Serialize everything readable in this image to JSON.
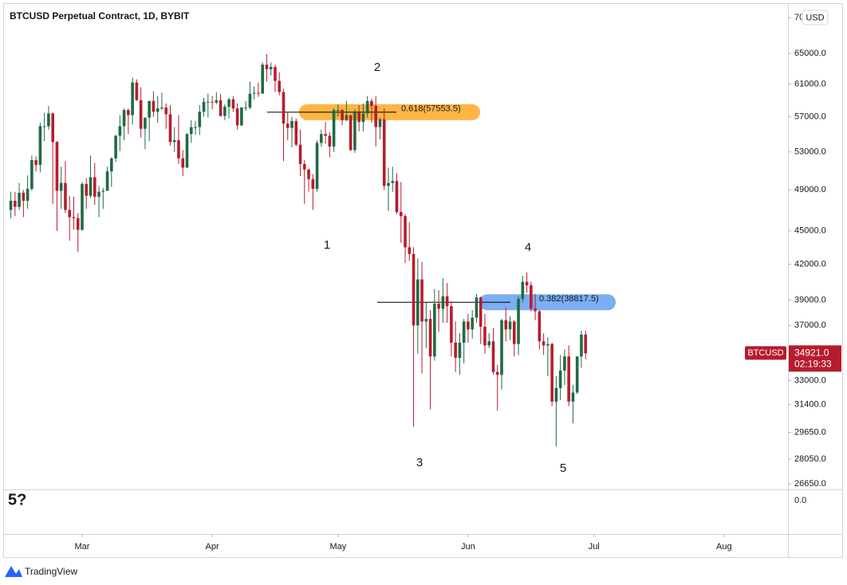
{
  "chart_data": {
    "type": "candlestick",
    "title": "BTCUSD Perpetual Contract, 1D, BYBIT",
    "symbol": "BTCUSD",
    "currency_button": "USD",
    "brand": "TradingView",
    "up_color": "#1e6b45",
    "down_color": "#b71c2c",
    "log_scale": true,
    "grid": false,
    "ylim": [
      26390,
      71650
    ],
    "yticks": [
      {
        "value": 70000,
        "label": "70000.0"
      },
      {
        "value": 65000,
        "label": "65000.0"
      },
      {
        "value": 61000,
        "label": "61000.0"
      },
      {
        "value": 57000,
        "label": "57000.0"
      },
      {
        "value": 53000,
        "label": "53000.0"
      },
      {
        "value": 49000,
        "label": "49000.0"
      },
      {
        "value": 45000,
        "label": "45000.0"
      },
      {
        "value": 42000,
        "label": "42000.0"
      },
      {
        "value": 39000,
        "label": "39000.0"
      },
      {
        "value": 37000,
        "label": "37000.0"
      },
      {
        "value": 33000,
        "label": "33000.0"
      },
      {
        "value": 31400,
        "label": "31400.0"
      },
      {
        "value": 29650,
        "label": "29650.0"
      },
      {
        "value": 28050,
        "label": "28050.0"
      },
      {
        "value": 26650,
        "label": "26650.0"
      }
    ],
    "xticks": [
      {
        "value": 17,
        "label": "Mar"
      },
      {
        "value": 48,
        "label": "Apr"
      },
      {
        "value": 78,
        "label": "May"
      },
      {
        "value": 109,
        "label": "Jun"
      },
      {
        "value": 139,
        "label": "Jul"
      },
      {
        "value": 170,
        "label": "Aug"
      }
    ],
    "last_price": {
      "value": 34921,
      "label": "34921.0"
    },
    "countdown": "02:19:33",
    "fib_levels": [
      {
        "label": "0.618(57553.5)",
        "value": 57553.5,
        "color": "#ffa726"
      },
      {
        "label": "0.382(38817.5)",
        "value": 38817.5,
        "color": "#64a0f0"
      }
    ],
    "waves": [
      "1",
      "2",
      "3",
      "4",
      "5"
    ],
    "lower_pane": {
      "label": "5?",
      "yticks": [
        {
          "value": 0,
          "label": "0.0"
        }
      ]
    },
    "ohlc": [
      [
        47000,
        48800,
        46200,
        47900
      ],
      [
        47900,
        48800,
        46400,
        47300
      ],
      [
        47300,
        49700,
        47000,
        48700
      ],
      [
        48700,
        49000,
        46300,
        47900
      ],
      [
        47900,
        50500,
        47100,
        49100
      ],
      [
        49100,
        52600,
        48900,
        52100
      ],
      [
        52100,
        52500,
        50900,
        51600
      ],
      [
        51600,
        56300,
        50800,
        55900
      ],
      [
        55900,
        57500,
        54200,
        55900
      ],
      [
        55900,
        58300,
        55500,
        57400
      ],
      [
        57400,
        57500,
        47600,
        54100
      ],
      [
        54100,
        54200,
        45000,
        48900
      ],
      [
        48900,
        51400,
        47100,
        49700
      ],
      [
        49700,
        52000,
        46700,
        47000
      ],
      [
        47000,
        48400,
        44100,
        46300
      ],
      [
        46300,
        48300,
        45100,
        46200
      ],
      [
        46200,
        46700,
        43100,
        45100
      ],
      [
        45100,
        49800,
        45000,
        49600
      ],
      [
        49600,
        50200,
        47100,
        48400
      ],
      [
        48400,
        52600,
        48200,
        50300
      ],
      [
        50300,
        51800,
        47500,
        48300
      ],
      [
        48300,
        49400,
        46300,
        48800
      ],
      [
        48800,
        49200,
        47100,
        48900
      ],
      [
        48900,
        51400,
        48900,
        50900
      ],
      [
        50900,
        52400,
        49300,
        52300
      ],
      [
        52300,
        54900,
        51900,
        54800
      ],
      [
        54800,
        57200,
        53100,
        55900
      ],
      [
        55900,
        58000,
        54300,
        57800
      ],
      [
        57800,
        58000,
        55000,
        57200
      ],
      [
        57200,
        61800,
        56100,
        61200
      ],
      [
        61200,
        61600,
        58900,
        59000
      ],
      [
        59000,
        60600,
        54600,
        55600
      ],
      [
        55600,
        56900,
        53300,
        56900
      ],
      [
        56900,
        58900,
        54200,
        58900
      ],
      [
        58900,
        60100,
        57000,
        57600
      ],
      [
        57600,
        59500,
        56300,
        58000
      ],
      [
        58000,
        59900,
        57800,
        58100
      ],
      [
        58100,
        58600,
        55600,
        57300
      ],
      [
        57300,
        58400,
        53700,
        54100
      ],
      [
        54100,
        55800,
        53000,
        54300
      ],
      [
        54300,
        57200,
        51700,
        52300
      ],
      [
        52300,
        53200,
        50400,
        51300
      ],
      [
        51300,
        55100,
        51300,
        55000
      ],
      [
        55000,
        56600,
        54000,
        55800
      ],
      [
        55800,
        56500,
        54900,
        55800
      ],
      [
        55800,
        58400,
        54900,
        57600
      ],
      [
        57600,
        59300,
        57000,
        58800
      ],
      [
        58800,
        59800,
        56900,
        58800
      ],
      [
        58800,
        59500,
        57900,
        58700
      ],
      [
        58700,
        60000,
        58500,
        59000
      ],
      [
        59000,
        59800,
        57000,
        57100
      ],
      [
        57100,
        58500,
        56600,
        58200
      ],
      [
        58200,
        59300,
        56800,
        59100
      ],
      [
        59100,
        59500,
        57600,
        58000
      ],
      [
        58000,
        58600,
        55500,
        56000
      ],
      [
        56000,
        58200,
        55900,
        58100
      ],
      [
        58100,
        58900,
        57700,
        58100
      ],
      [
        58100,
        61300,
        57900,
        59800
      ],
      [
        59800,
        60700,
        59100,
        59900
      ],
      [
        59900,
        61200,
        59400,
        59800
      ],
      [
        59800,
        63800,
        59800,
        63500
      ],
      [
        63500,
        64900,
        61300,
        62900
      ],
      [
        62900,
        63800,
        62100,
        63200
      ],
      [
        63200,
        63500,
        60000,
        61400
      ],
      [
        61400,
        62500,
        59600,
        60000
      ],
      [
        60000,
        60400,
        52000,
        56200
      ],
      [
        56200,
        57600,
        54300,
        55700
      ],
      [
        55700,
        57000,
        53500,
        56500
      ],
      [
        56500,
        56800,
        53600,
        53800
      ],
      [
        53800,
        55500,
        50400,
        51700
      ],
      [
        51700,
        52100,
        47600,
        51100
      ],
      [
        51100,
        51200,
        48800,
        50100
      ],
      [
        50100,
        50600,
        47000,
        49100
      ],
      [
        49100,
        54300,
        48800,
        54000
      ],
      [
        54000,
        55500,
        53600,
        55000
      ],
      [
        55000,
        56400,
        53900,
        54800
      ],
      [
        54800,
        55200,
        52400,
        53600
      ],
      [
        53600,
        58000,
        53000,
        57800
      ],
      [
        57800,
        58500,
        57000,
        57800
      ],
      [
        57800,
        57900,
        56000,
        56600
      ],
      [
        56600,
        58900,
        56500,
        57200
      ],
      [
        57200,
        57200,
        53100,
        53200
      ],
      [
        53200,
        57900,
        52900,
        57500
      ],
      [
        57500,
        58400,
        55300,
        56400
      ],
      [
        56400,
        58600,
        55300,
        57400
      ],
      [
        57400,
        59500,
        56900,
        58900
      ],
      [
        58900,
        59200,
        56300,
        58300
      ],
      [
        58300,
        59500,
        53600,
        55800
      ],
      [
        55800,
        56900,
        54400,
        56700
      ],
      [
        56700,
        58000,
        49000,
        49400
      ],
      [
        49400,
        51300,
        46900,
        49700
      ],
      [
        49700,
        51400,
        48800,
        49900
      ],
      [
        49900,
        50700,
        46600,
        46800
      ],
      [
        46800,
        49800,
        43900,
        46400
      ],
      [
        46400,
        46600,
        42100,
        43500
      ],
      [
        43500,
        45800,
        42300,
        42900
      ],
      [
        42900,
        43500,
        30000,
        37000
      ],
      [
        37000,
        42500,
        34900,
        40700
      ],
      [
        40700,
        42200,
        33500,
        37300
      ],
      [
        37300,
        38800,
        35300,
        37500
      ],
      [
        37500,
        38200,
        31100,
        34700
      ],
      [
        34700,
        39900,
        34400,
        38700
      ],
      [
        38700,
        39800,
        36500,
        38300
      ],
      [
        38300,
        40800,
        37200,
        39300
      ],
      [
        39300,
        40400,
        37200,
        38500
      ],
      [
        38500,
        38900,
        34700,
        35700
      ],
      [
        35700,
        37300,
        33600,
        34600
      ],
      [
        34600,
        36400,
        33400,
        35700
      ],
      [
        35700,
        37500,
        34200,
        37300
      ],
      [
        37300,
        37900,
        35700,
        36700
      ],
      [
        36700,
        38200,
        36000,
        37600
      ],
      [
        37600,
        39500,
        37200,
        39200
      ],
      [
        39200,
        39300,
        35600,
        36900
      ],
      [
        36900,
        37900,
        34900,
        35500
      ],
      [
        35500,
        36400,
        35300,
        35800
      ],
      [
        35800,
        36800,
        33400,
        33600
      ],
      [
        33600,
        34100,
        31000,
        33400
      ],
      [
        33400,
        37500,
        32400,
        37400
      ],
      [
        37400,
        38400,
        35800,
        36700
      ],
      [
        36700,
        37700,
        35900,
        37300
      ],
      [
        37300,
        37400,
        34700,
        35600
      ],
      [
        35600,
        39300,
        34800,
        39100
      ],
      [
        39100,
        41000,
        38800,
        40500
      ],
      [
        40500,
        41300,
        39600,
        40200
      ],
      [
        40200,
        40500,
        38100,
        38300
      ],
      [
        38300,
        39500,
        37400,
        38100
      ],
      [
        38100,
        38200,
        35200,
        35800
      ],
      [
        35800,
        36400,
        34800,
        35500
      ],
      [
        35500,
        36100,
        33300,
        35600
      ],
      [
        35600,
        35700,
        31300,
        31600
      ],
      [
        31600,
        33300,
        28800,
        32500
      ],
      [
        32500,
        34800,
        31700,
        33700
      ],
      [
        33700,
        35200,
        32700,
        34700
      ],
      [
        34700,
        35500,
        31300,
        31600
      ],
      [
        31600,
        32700,
        30200,
        32200
      ],
      [
        32200,
        34700,
        32100,
        34700
      ],
      [
        34700,
        36600,
        33900,
        36300
      ],
      [
        36300,
        36600,
        34500,
        34921
      ]
    ]
  }
}
